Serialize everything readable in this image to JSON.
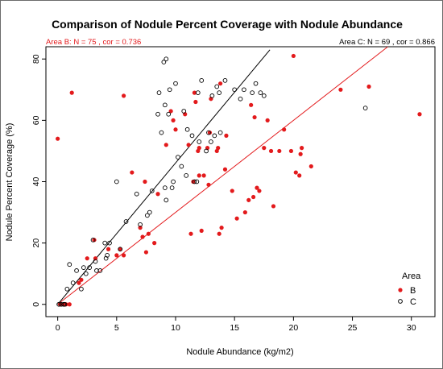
{
  "chart_data": {
    "type": "scatter",
    "title": "Comparison of Nodule Percent Coverage with Nodule Abundance",
    "xlabel": "Nodule Abundance (kg/m2)",
    "ylabel": "Nodule Percent Coverage (%)",
    "xlim": [
      -1,
      32
    ],
    "ylim": [
      -4,
      84
    ],
    "xticks": [
      0,
      5,
      10,
      15,
      20,
      25,
      30
    ],
    "yticks": [
      0,
      20,
      40,
      60,
      80
    ],
    "grid": false,
    "annotations": {
      "left": "Area B: N = 75 , cor = 0.736",
      "right": "Area C: N = 69 , cor = 0.866"
    },
    "legend": {
      "title": "Area",
      "position": "bottom-right",
      "entries": [
        {
          "label": "B",
          "marker": "filled-circle",
          "color": "#e31a1c"
        },
        {
          "label": "C",
          "marker": "open-circle",
          "color": "#000000"
        }
      ]
    },
    "series": [
      {
        "name": "B",
        "color": "#e31a1c",
        "marker": "filled",
        "fit_line": {
          "x0": 0,
          "y0": 0,
          "x1": 28,
          "y1": 84
        },
        "points": [
          [
            0.0,
            54
          ],
          [
            0.2,
            0
          ],
          [
            0.5,
            0
          ],
          [
            0.7,
            0
          ],
          [
            1.0,
            0
          ],
          [
            1.2,
            69
          ],
          [
            1.8,
            7
          ],
          [
            2.0,
            8
          ],
          [
            2.5,
            15
          ],
          [
            3.1,
            21
          ],
          [
            3.2,
            15
          ],
          [
            4.3,
            18
          ],
          [
            5.0,
            16
          ],
          [
            5.3,
            18
          ],
          [
            5.6,
            68
          ],
          [
            5.6,
            16
          ],
          [
            6.3,
            43
          ],
          [
            7.0,
            25
          ],
          [
            7.2,
            22
          ],
          [
            7.4,
            40
          ],
          [
            7.5,
            17
          ],
          [
            7.7,
            23
          ],
          [
            8.2,
            20
          ],
          [
            8.5,
            36
          ],
          [
            9.2,
            52
          ],
          [
            9.6,
            63
          ],
          [
            9.8,
            60
          ],
          [
            10.0,
            57
          ],
          [
            10.8,
            62
          ],
          [
            11.1,
            52
          ],
          [
            11.3,
            23
          ],
          [
            11.5,
            40
          ],
          [
            11.6,
            69
          ],
          [
            11.7,
            66
          ],
          [
            11.9,
            50
          ],
          [
            12.0,
            51
          ],
          [
            12.0,
            42
          ],
          [
            12.2,
            24
          ],
          [
            12.4,
            42
          ],
          [
            12.7,
            51
          ],
          [
            12.8,
            39
          ],
          [
            12.9,
            56
          ],
          [
            13.0,
            67
          ],
          [
            13.5,
            50
          ],
          [
            13.6,
            51
          ],
          [
            13.7,
            23
          ],
          [
            13.8,
            72
          ],
          [
            13.9,
            25
          ],
          [
            14.2,
            44
          ],
          [
            14.3,
            55
          ],
          [
            14.8,
            37
          ],
          [
            15.2,
            28
          ],
          [
            15.9,
            30
          ],
          [
            16.2,
            34
          ],
          [
            16.4,
            65
          ],
          [
            16.6,
            35
          ],
          [
            16.7,
            61
          ],
          [
            16.9,
            38
          ],
          [
            17.1,
            37
          ],
          [
            17.5,
            51
          ],
          [
            17.8,
            60
          ],
          [
            18.1,
            50
          ],
          [
            18.3,
            32
          ],
          [
            18.8,
            50
          ],
          [
            19.2,
            57
          ],
          [
            19.8,
            50
          ],
          [
            20.0,
            81
          ],
          [
            20.2,
            43
          ],
          [
            20.5,
            42
          ],
          [
            20.6,
            49
          ],
          [
            20.7,
            51
          ],
          [
            21.5,
            45
          ],
          [
            24.0,
            70
          ],
          [
            26.4,
            71
          ],
          [
            30.7,
            62
          ]
        ]
      },
      {
        "name": "C",
        "color": "#000000",
        "marker": "open",
        "fit_line": {
          "x0": 0,
          "y0": 0,
          "x1": 18,
          "y1": 83
        },
        "points": [
          [
            0.1,
            0
          ],
          [
            0.3,
            0
          ],
          [
            0.5,
            0
          ],
          [
            0.6,
            0
          ],
          [
            0.8,
            5
          ],
          [
            1.0,
            13
          ],
          [
            1.3,
            7
          ],
          [
            1.6,
            11
          ],
          [
            2.0,
            5
          ],
          [
            2.2,
            12
          ],
          [
            2.4,
            10
          ],
          [
            2.7,
            12
          ],
          [
            3.0,
            21
          ],
          [
            3.2,
            14
          ],
          [
            3.3,
            11
          ],
          [
            3.6,
            11
          ],
          [
            4.0,
            20
          ],
          [
            4.1,
            15
          ],
          [
            4.2,
            16
          ],
          [
            4.4,
            20
          ],
          [
            5.0,
            40
          ],
          [
            5.3,
            18
          ],
          [
            5.8,
            27
          ],
          [
            6.7,
            36
          ],
          [
            7.0,
            26
          ],
          [
            7.6,
            29
          ],
          [
            7.8,
            30
          ],
          [
            8.0,
            37
          ],
          [
            8.5,
            62
          ],
          [
            8.6,
            69
          ],
          [
            8.8,
            56
          ],
          [
            9.0,
            79
          ],
          [
            9.1,
            38
          ],
          [
            9.1,
            65
          ],
          [
            9.2,
            80
          ],
          [
            9.2,
            34
          ],
          [
            9.4,
            62
          ],
          [
            9.5,
            70
          ],
          [
            9.7,
            38
          ],
          [
            9.8,
            40
          ],
          [
            10.0,
            72
          ],
          [
            10.2,
            48
          ],
          [
            10.5,
            45
          ],
          [
            10.7,
            63
          ],
          [
            10.9,
            42
          ],
          [
            11.0,
            57
          ],
          [
            11.4,
            55
          ],
          [
            11.6,
            40
          ],
          [
            11.8,
            40
          ],
          [
            11.9,
            69
          ],
          [
            12.0,
            53
          ],
          [
            12.2,
            73
          ],
          [
            12.6,
            50
          ],
          [
            12.8,
            56
          ],
          [
            13.0,
            53
          ],
          [
            13.1,
            68
          ],
          [
            13.3,
            55
          ],
          [
            13.5,
            71
          ],
          [
            13.7,
            69
          ],
          [
            13.8,
            56
          ],
          [
            14.2,
            73
          ],
          [
            15.0,
            70
          ],
          [
            15.5,
            67
          ],
          [
            15.8,
            70
          ],
          [
            16.5,
            69
          ],
          [
            16.8,
            72
          ],
          [
            17.2,
            69
          ],
          [
            17.5,
            68
          ],
          [
            26.1,
            64
          ]
        ]
      }
    ]
  }
}
